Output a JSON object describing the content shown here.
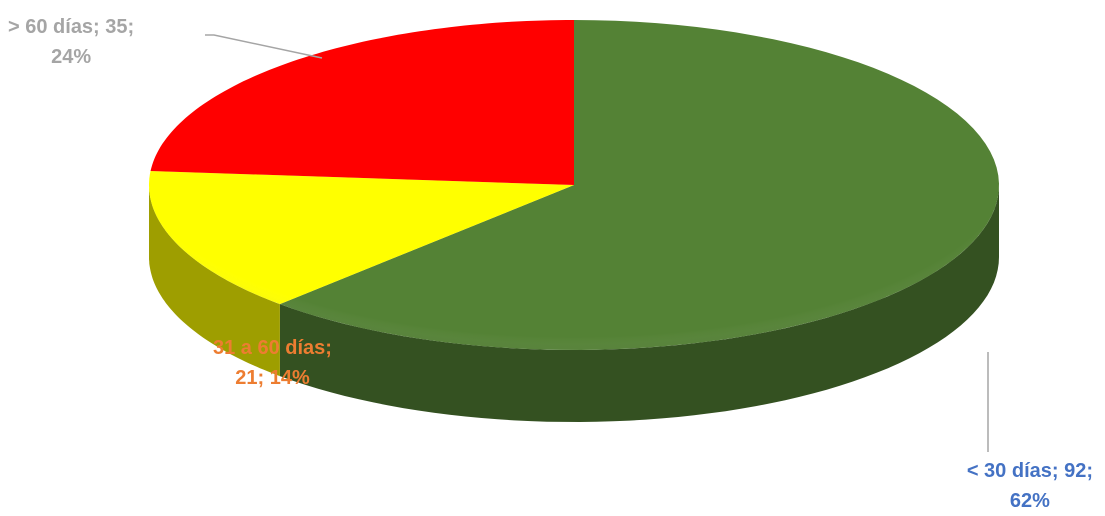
{
  "chart_data": {
    "type": "pie",
    "style": "3d",
    "legend": "none",
    "slices": [
      {
        "category": "< 30 días",
        "value": 92,
        "percent": "62%",
        "color": "#548235",
        "label_color": "#4472C4",
        "label_line1": "< 30 días; 92;",
        "label_line2": "62%"
      },
      {
        "category": "31 a 60 días",
        "value": 21,
        "percent": "14%",
        "color": "#FFFF00",
        "label_color": "#ED7D31",
        "label_line1": "31 a 60 días;",
        "label_line2": "21; 14%"
      },
      {
        "category": "> 60 días",
        "value": 35,
        "percent": "24%",
        "color": "#FF0000",
        "label_color": "#A5A5A5",
        "label_line1": "> 60 días; 35;",
        "label_line2": "24%"
      }
    ]
  }
}
